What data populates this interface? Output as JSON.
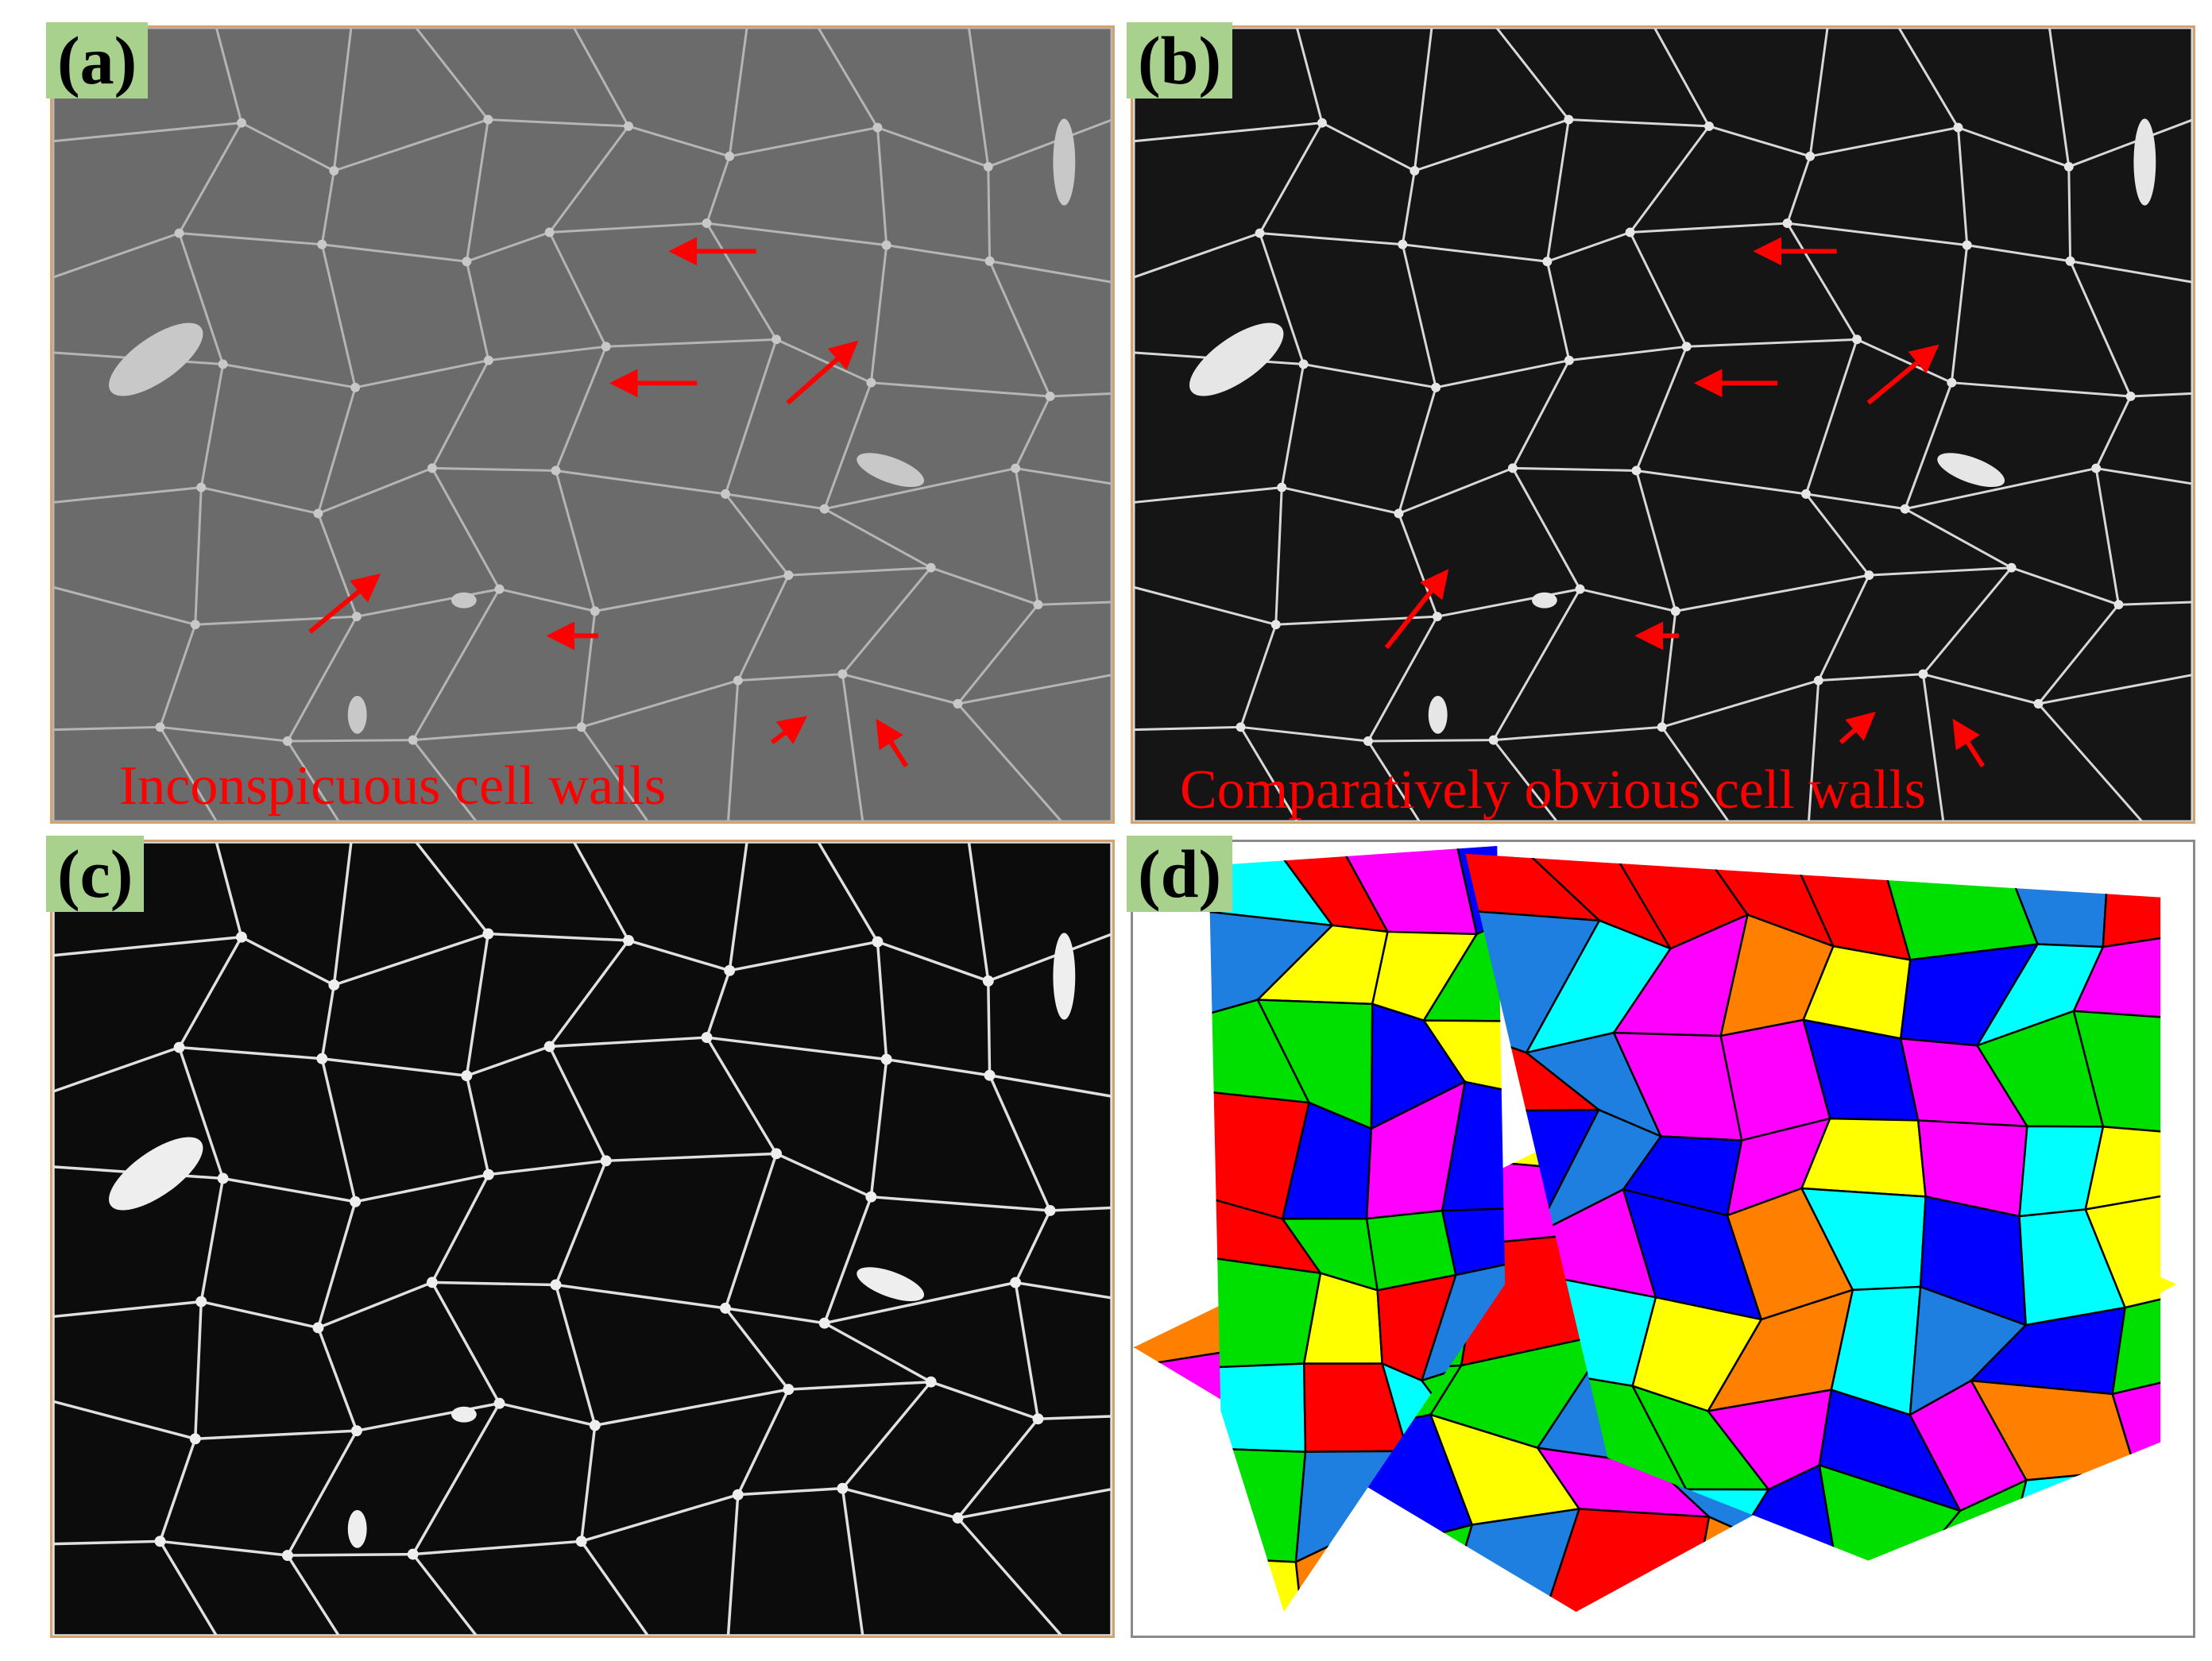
{
  "labels": {
    "a": "(a)",
    "b": "(b)",
    "c": "(c)",
    "d": "(d)"
  },
  "captions": {
    "a": "Inconspicuous cell walls",
    "b": "Comparatively obvious cell walls"
  },
  "colors": {
    "label_bg": "#a9d18e",
    "caption": "#ff0000",
    "arrow": "#ff0000",
    "panel_border": "#d4a36a",
    "panel_d_border": "#8a8a8a",
    "panel_a_bg": "#6b6b6b",
    "panel_b_bg": "#151515",
    "panel_c_bg": "#0c0c0c",
    "segmentation": [
      "#ff0000",
      "#0000ff",
      "#00ffff",
      "#ffff00",
      "#00e000",
      "#ff00ff",
      "#ff8000",
      "#1e7fe0"
    ]
  }
}
